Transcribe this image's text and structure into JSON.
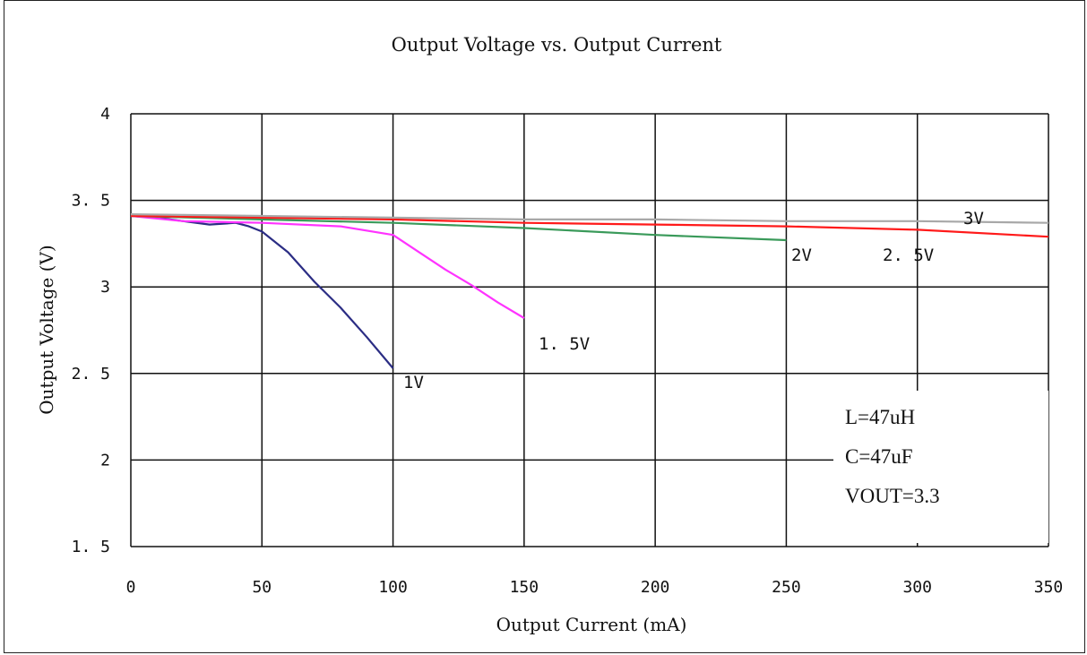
{
  "chart_data": {
    "type": "line",
    "title": "Output Voltage vs. Output Current",
    "xlabel": "Output Current (mA)",
    "ylabel": "Output Voltage (V)",
    "xlim": [
      0,
      350
    ],
    "ylim": [
      1.5,
      4
    ],
    "x_ticks": [
      "0",
      "50",
      "100",
      "150",
      "200",
      "250",
      "300",
      "350"
    ],
    "y_ticks": [
      "1. 5",
      "2",
      "2. 5",
      "3",
      "3. 5",
      "4"
    ],
    "grid": true,
    "series": [
      {
        "name": "1V",
        "color": "#2b2d84",
        "points": [
          [
            0,
            3.41
          ],
          [
            10,
            3.4
          ],
          [
            20,
            3.38
          ],
          [
            30,
            3.36
          ],
          [
            40,
            3.37
          ],
          [
            45,
            3.35
          ],
          [
            50,
            3.32
          ],
          [
            60,
            3.2
          ],
          [
            70,
            3.03
          ],
          [
            80,
            2.88
          ],
          [
            90,
            2.71
          ],
          [
            100,
            2.53
          ]
        ]
      },
      {
        "name": "1. 5V",
        "color": "#ff33ff",
        "points": [
          [
            0,
            3.41
          ],
          [
            20,
            3.38
          ],
          [
            50,
            3.37
          ],
          [
            80,
            3.35
          ],
          [
            100,
            3.3
          ],
          [
            110,
            3.2
          ],
          [
            120,
            3.1
          ],
          [
            130,
            3.01
          ],
          [
            140,
            2.91
          ],
          [
            150,
            2.82
          ]
        ]
      },
      {
        "name": "2V",
        "color": "#3a9a5a",
        "points": [
          [
            0,
            3.41
          ],
          [
            50,
            3.39
          ],
          [
            100,
            3.37
          ],
          [
            150,
            3.34
          ],
          [
            200,
            3.3
          ],
          [
            250,
            3.27
          ]
        ]
      },
      {
        "name": "2. 5V",
        "color": "#ff1a1a",
        "points": [
          [
            0,
            3.41
          ],
          [
            50,
            3.4
          ],
          [
            100,
            3.39
          ],
          [
            150,
            3.37
          ],
          [
            200,
            3.36
          ],
          [
            250,
            3.35
          ],
          [
            300,
            3.33
          ],
          [
            350,
            3.29
          ]
        ]
      },
      {
        "name": "3V",
        "color": "#a8a8a8",
        "points": [
          [
            0,
            3.42
          ],
          [
            50,
            3.41
          ],
          [
            100,
            3.4
          ],
          [
            150,
            3.39
          ],
          [
            200,
            3.39
          ],
          [
            250,
            3.38
          ],
          [
            300,
            3.38
          ],
          [
            350,
            3.37
          ]
        ]
      }
    ],
    "annotations": [
      "L=47uH",
      "C=47uF",
      "VOUT=3.3"
    ]
  }
}
